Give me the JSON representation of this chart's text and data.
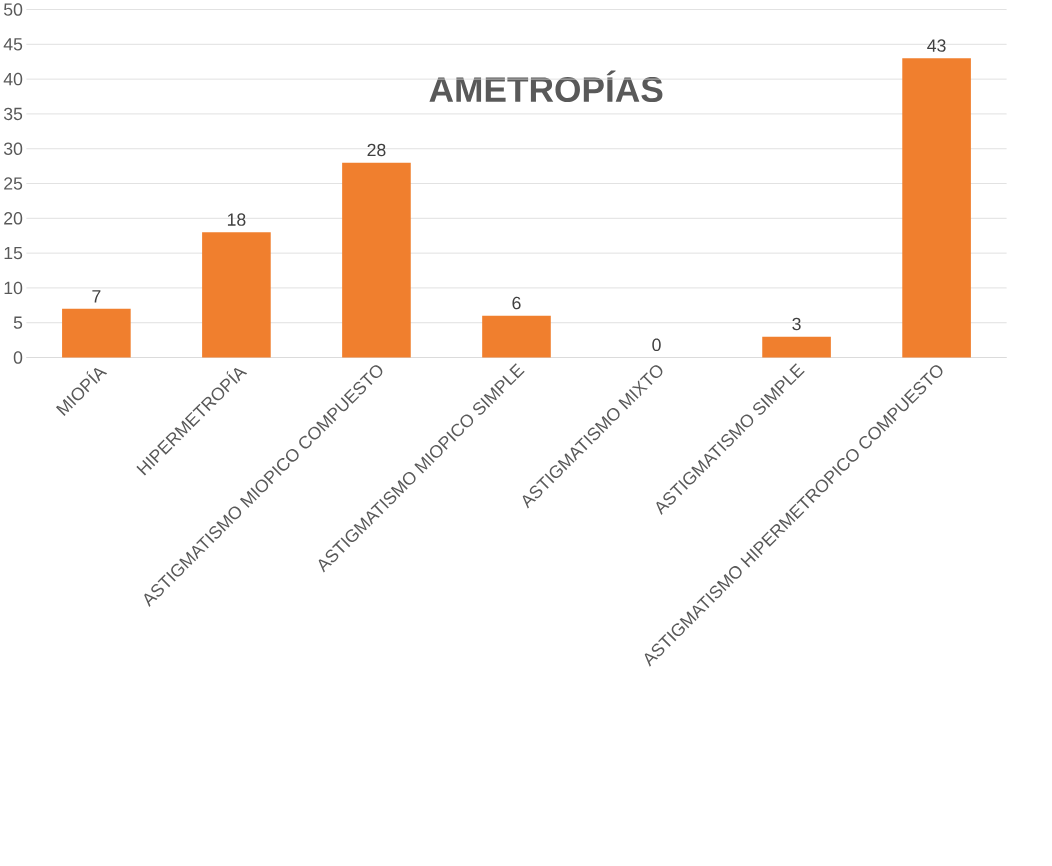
{
  "chart_data": {
    "type": "bar",
    "title": "AMETROPÍAS",
    "categories": [
      "MIOPÍA",
      "HIPERMETROPÍA",
      "ASTIGMATISMO MIOPICO COMPUESTO",
      "ASTIGMATISMO MIOPICO SIMPLE",
      "ASTIGMATISMO MIXTO",
      "ASTIGMATISMO SIMPLE",
      "ASTIGMATISMO HIPERMETROPICO COMPUESTO"
    ],
    "values": [
      7,
      18,
      28,
      6,
      0,
      3,
      43
    ],
    "color": "#f07f2e",
    "ylim": [
      0,
      50
    ],
    "yticks": [
      0,
      5,
      10,
      15,
      20,
      25,
      30,
      35,
      40,
      45,
      50
    ],
    "grid": "y",
    "data_labels": true
  }
}
